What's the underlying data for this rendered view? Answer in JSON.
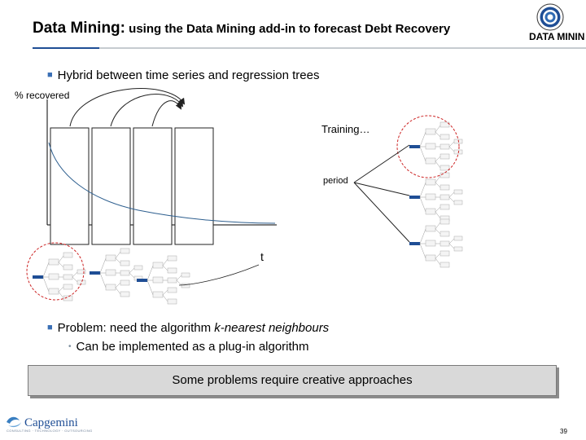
{
  "header": {
    "title_main": "Data Mining:",
    "title_sub": " using the Data Mining add-in to forecast Debt Recovery",
    "logo_text": "DATA MININ"
  },
  "bullets": [
    {
      "text": "Hybrid between time series and regression trees"
    },
    {
      "text_before": "Problem: need the algorithm ",
      "text_italic": "k-nearest neighbours"
    },
    {
      "text": "Can be implemented as a plug-in algorithm"
    }
  ],
  "diagram": {
    "y_axis_label": "% recovered",
    "x_axis_label": "t",
    "training_label": "Training…",
    "period_label": "period",
    "window_count": 4
  },
  "callout": {
    "text": "Some problems require creative approaches"
  },
  "footer": {
    "brand": "Capgemini",
    "tagline": "CONSULTING · TECHNOLOGY · OUTSOURCING",
    "page_number": "39"
  },
  "colors": {
    "accent": "#1f4e95",
    "highlight_circle": "#cc2222",
    "curve": "#2e5f8f"
  }
}
